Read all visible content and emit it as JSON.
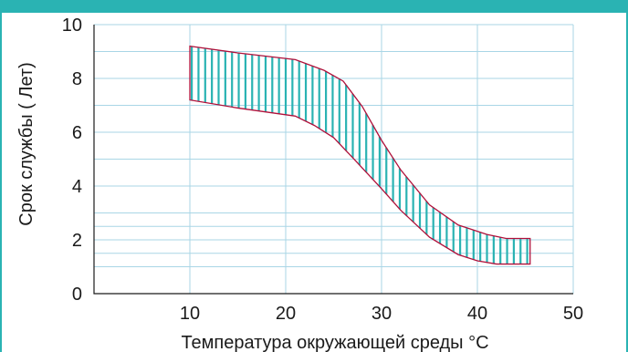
{
  "colors": {
    "accent": "#2ab3b3",
    "grid": "#a9d6e6",
    "axis": "#1a1a1a",
    "band_outline": "#b0103a",
    "band_stripe": "#2ab3b3"
  },
  "chart_data": {
    "type": "area",
    "xlabel": "Температура окружающей среды °C",
    "ylabel": "Срок службы ( Лет)",
    "xlim": [
      0,
      50
    ],
    "ylim": [
      0,
      10
    ],
    "x_ticks": [
      10,
      20,
      30,
      40,
      50
    ],
    "x_tick_labels": [
      "10",
      "20",
      "30",
      "40",
      "50"
    ],
    "y_ticks": [
      0,
      2,
      4,
      6,
      8,
      10
    ],
    "y_tick_labels": [
      "0",
      "2",
      "4",
      "6",
      "8",
      "10"
    ],
    "y_gridlines": [
      1,
      1.5,
      2,
      2.5,
      3,
      4,
      5,
      6,
      7,
      8,
      9,
      10
    ],
    "grid": true,
    "series": [
      {
        "role": "upper",
        "x": [
          10,
          15,
          21,
          24,
          26,
          28,
          30,
          32,
          35,
          38,
          41,
          43,
          45.5
        ],
        "y": [
          9.2,
          8.95,
          8.7,
          8.3,
          7.9,
          6.95,
          5.7,
          4.6,
          3.3,
          2.55,
          2.2,
          2.05,
          2.05
        ]
      },
      {
        "role": "lower",
        "x": [
          10,
          15,
          21,
          23,
          25,
          27,
          30,
          32,
          35,
          38,
          40,
          42,
          45.5
        ],
        "y": [
          7.2,
          6.9,
          6.6,
          6.25,
          5.8,
          5.05,
          3.9,
          3.1,
          2.1,
          1.45,
          1.22,
          1.1,
          1.1
        ]
      }
    ]
  }
}
